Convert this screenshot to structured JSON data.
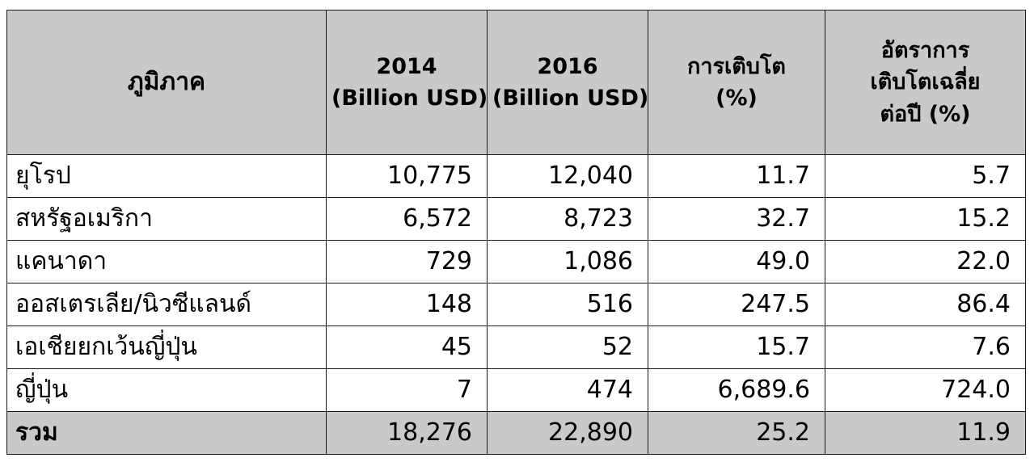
{
  "chart_data": {
    "type": "table",
    "columns": [
      {
        "lines": [
          "ภูมิภาค"
        ]
      },
      {
        "lines": [
          "2014",
          "(Billion USD)"
        ]
      },
      {
        "lines": [
          "2016",
          "(Billion USD)"
        ]
      },
      {
        "lines": [
          "การเติบโต",
          "(%)"
        ]
      },
      {
        "lines": [
          "อัตราการ",
          "เติบโตเฉลี่ย",
          "ต่อปี (%)"
        ]
      }
    ],
    "rows": [
      {
        "region": "ยุโรป",
        "v2014": "10,775",
        "v2016": "12,040",
        "growth": "11.7",
        "avg": "5.7"
      },
      {
        "region": "สหรัฐอเมริกา",
        "v2014": "6,572",
        "v2016": "8,723",
        "growth": "32.7",
        "avg": "15.2"
      },
      {
        "region": "แคนาดา",
        "v2014": "729",
        "v2016": "1,086",
        "growth": "49.0",
        "avg": "22.0"
      },
      {
        "region": "ออสเตรเลีย/นิวซีแลนด์",
        "v2014": "148",
        "v2016": "516",
        "growth": "247.5",
        "avg": "86.4"
      },
      {
        "region": "เอเชียยกเว้นญี่ปุ่น",
        "v2014": "45",
        "v2016": "52",
        "growth": "15.7",
        "avg": "7.6"
      },
      {
        "region": "ญี่ปุ่น",
        "v2014": "7",
        "v2016": "474",
        "growth": "6,689.6",
        "avg": "724.0"
      }
    ],
    "total": {
      "region": "รวม",
      "v2014": "18,276",
      "v2016": "22,890",
      "growth": "25.2",
      "avg": "11.9"
    }
  },
  "colors": {
    "header_bg": "#c9c9c9",
    "total_bg": "#c9c9c9",
    "body_bg": "#ffffff",
    "border": "#1a1a1a",
    "text": "#000000"
  }
}
